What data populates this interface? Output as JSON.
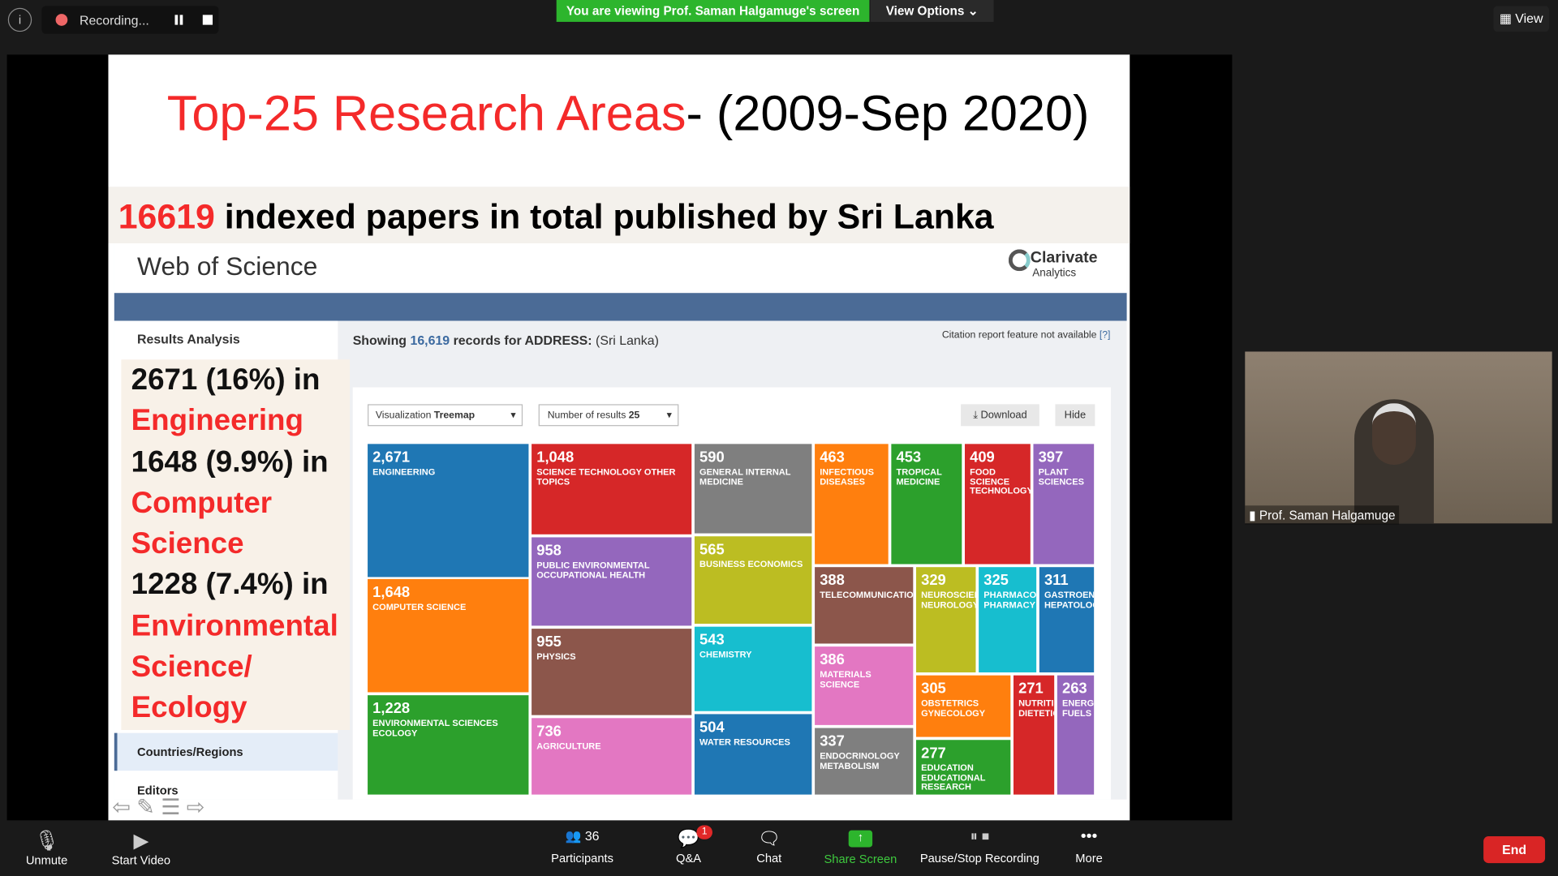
{
  "topbar": {
    "recording": "Recording...",
    "banner": "You are viewing Prof. Saman Halgamuge's screen",
    "view_options": "View Options",
    "view": "View"
  },
  "slide": {
    "title_red": "Top-25 Research Areas",
    "title_black": "- (2009-Sep 2020)",
    "total_red": "16619",
    "total_text": "indexed papers in total published by Sri Lanka",
    "wos": {
      "brand": "Web of Science",
      "clarivate": "Clarivate",
      "analytics": "Analytics",
      "results_analysis": "Results Analysis",
      "showing": "Showing",
      "records": "16,619",
      "records_for": "records for ADDRESS:",
      "address": "(Sri Lanka)",
      "citation": "Citation report feature not available",
      "help": "[?]",
      "viz_label": "Visualization",
      "viz_value": "Treemap",
      "num_label": "Number of results",
      "num_value": "25",
      "download": "Download",
      "hide": "Hide",
      "countries": "Countries/Regions",
      "editors": "Editors"
    },
    "notes": [
      "2671 (16%) in",
      "Engineering",
      "1648 (9.9%) in",
      "Computer",
      "Science",
      "1228 (7.4%) in",
      "Environmental",
      "Science/",
      "Ecology"
    ],
    "treemap": {
      "values": [
        2671,
        1648,
        1228,
        1048,
        958,
        955,
        736,
        590,
        565,
        543,
        504,
        463,
        453,
        409,
        397,
        388,
        386,
        337,
        329,
        325,
        311,
        305,
        277,
        271,
        263
      ],
      "value_labels": [
        "2,671",
        "1,648",
        "1,228",
        "1,048",
        "958",
        "955",
        "736",
        "590",
        "565",
        "543",
        "504",
        "463",
        "453",
        "409",
        "397",
        "388",
        "386",
        "337",
        "329",
        "325",
        "311",
        "305",
        "277",
        "271",
        "263"
      ],
      "categories": [
        "ENGINEERING",
        "COMPUTER SCIENCE",
        "ENVIRONMENTAL SCIENCES ECOLOGY",
        "SCIENCE TECHNOLOGY OTHER TOPICS",
        "PUBLIC ENVIRONMENTAL OCCUPATIONAL HEALTH",
        "PHYSICS",
        "AGRICULTURE",
        "GENERAL INTERNAL MEDICINE",
        "BUSINESS ECONOMICS",
        "CHEMISTRY",
        "WATER RESOURCES",
        "INFECTIOUS DISEASES",
        "TROPICAL MEDICINE",
        "FOOD SCIENCE TECHNOLOGY",
        "PLANT SCIENCES",
        "TELECOMMUNICATIO",
        "MATERIALS SCIENCE",
        "ENDOCRINOLOGY METABOLISM",
        "NEUROSCIEN NEUROLOGY",
        "PHARMACOL PHARMACY",
        "GASTROENT HEPATOLOG",
        "OBSTETRICS GYNECOLOGY",
        "EDUCATION EDUCATIONAL RESEARCH",
        "NUTRITI DIETETIC",
        "ENERG FUELS"
      ],
      "colors": [
        "#1f77b4",
        "#ff7f0e",
        "#2ca02c",
        "#d62728",
        "#9467bd",
        "#8c564b",
        "#e377c2",
        "#7f7f7f",
        "#bcbd22",
        "#17becf",
        "#1f77b4",
        "#ff7f0e",
        "#2ca02c",
        "#d62728",
        "#9467bd",
        "#8c564b",
        "#e377c2",
        "#7f7f7f",
        "#bcbd22",
        "#17becf",
        "#1f77b4",
        "#ff7f0e",
        "#2ca02c",
        "#d62728",
        "#9467bd"
      ]
    }
  },
  "video": {
    "name": "Prof. Saman Halgamuge"
  },
  "toolbar": {
    "unmute": "Unmute",
    "start_video": "Start Video",
    "participant_count": 36,
    "participants": "Participants",
    "qa_badge": 1,
    "qa": "Q&A",
    "chat": "Chat",
    "share": "Share Screen",
    "pause": "Pause/Stop Recording",
    "more": "More",
    "end": "End"
  }
}
